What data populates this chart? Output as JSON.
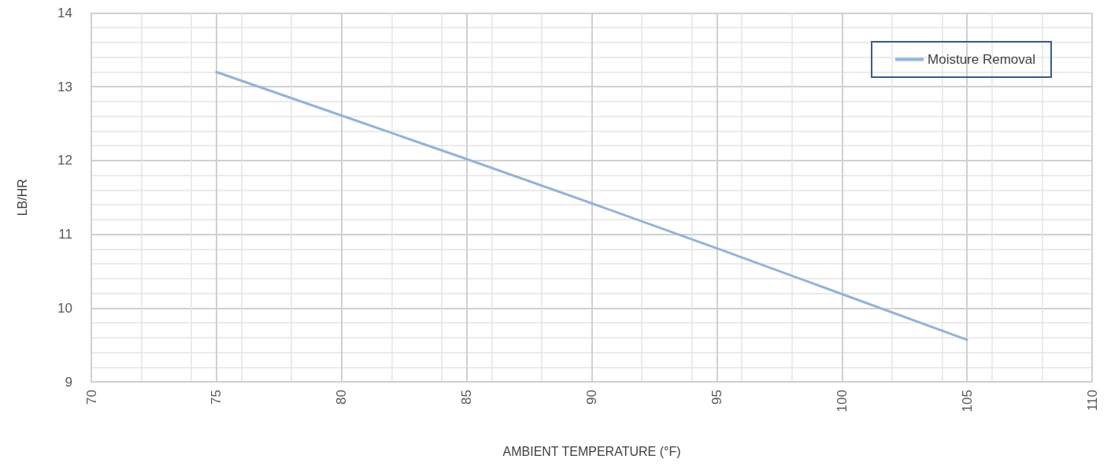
{
  "chart_data": {
    "type": "line",
    "xlabel": "AMBIENT TEMPERATURE (°F)",
    "ylabel": "LB/HR",
    "x": [
      75,
      80,
      85,
      90,
      95,
      100,
      105
    ],
    "series": [
      {
        "name": "Moisture Removal",
        "color": "#95b3d7",
        "values": [
          13.2,
          12.61,
          12.02,
          11.42,
          10.81,
          10.19,
          9.57
        ]
      }
    ],
    "xlim": [
      70,
      110
    ],
    "xticks": [
      70,
      75,
      80,
      85,
      90,
      95,
      100,
      105,
      110
    ],
    "ylim": [
      9,
      14
    ],
    "yticks": [
      9,
      10,
      11,
      12,
      13,
      14
    ],
    "grid": true,
    "legend": "top right",
    "marker": "none",
    "line_style": "solid"
  }
}
